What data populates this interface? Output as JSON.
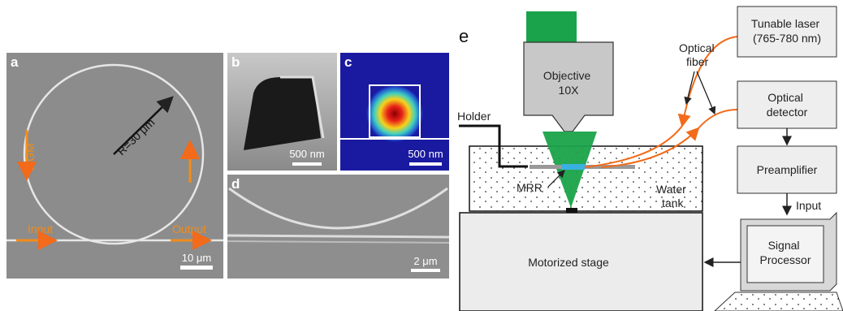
{
  "panels": {
    "a": {
      "label": "a",
      "radius": "R=30 μm",
      "wgm": "WGM",
      "input": "Input",
      "output": "Output",
      "scale": "10 μm"
    },
    "b": {
      "label": "b",
      "scale": "500 nm"
    },
    "c": {
      "label": "c",
      "scale": "500 nm"
    },
    "d": {
      "label": "d",
      "scale": "2 μm"
    },
    "e": {
      "label": "e",
      "laser": [
        "Tunable laser",
        "(765-780 nm)"
      ],
      "fiber": [
        "Optical",
        "fiber"
      ],
      "objective": [
        "Objective",
        "10X"
      ],
      "detector": [
        "Optical",
        "detector"
      ],
      "holder": "Holder",
      "preamplifier": "Preamplifier",
      "input": "Input",
      "mrr": "MRR",
      "tank": [
        "Water",
        "tank"
      ],
      "stage": "Motorized stage",
      "processor": [
        "Signal",
        "Processor"
      ]
    }
  }
}
